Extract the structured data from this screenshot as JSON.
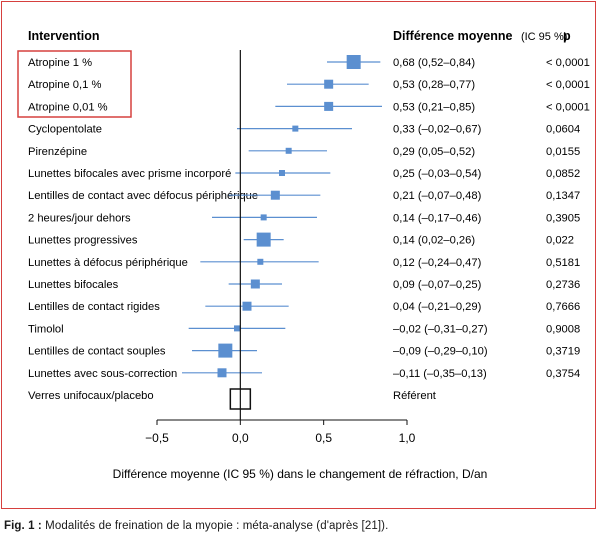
{
  "caption": {
    "figure_label": "Fig. 1 :",
    "text": " Modalités de freination de la myopie : méta-analyse (d'après [21])."
  },
  "headers": {
    "intervention": "Intervention",
    "difference": "Différence moyenne",
    "ci": "(IC 95 %)",
    "p": "p"
  },
  "colors": {
    "frame": "#d6403e",
    "highlight_box": "#d6403e",
    "marker": "#5b8fd0"
  },
  "chart_data": {
    "type": "forest",
    "xlabel": "Différence moyenne (IC 95 %) dans le changement de réfraction, D/an",
    "xlim": [
      -0.5,
      1.0
    ],
    "xticks": [
      "−0,5",
      "0,0",
      "0,5",
      "1,0"
    ],
    "xtick_values": [
      -0.5,
      0.0,
      0.5,
      1.0
    ],
    "highlighted_rows": [
      0,
      1,
      2
    ],
    "rows": [
      {
        "label": "Atropine 1 %",
        "md": 0.68,
        "lo": 0.52,
        "hi": 0.84,
        "ci_text": "0,68 (0,52–0,84)",
        "p": "< 0,0001",
        "weight": 3
      },
      {
        "label": "Atropine 0,1 %",
        "md": 0.53,
        "lo": 0.28,
        "hi": 0.77,
        "ci_text": "0,53 (0,28–0,77)",
        "p": "< 0,0001",
        "weight": 2
      },
      {
        "label": "Atropine 0,01 %",
        "md": 0.53,
        "lo": 0.21,
        "hi": 0.85,
        "ci_text": "0,53 (0,21–0,85)",
        "p": "< 0,0001",
        "weight": 2
      },
      {
        "label": "Cyclopentolate",
        "md": 0.33,
        "lo": -0.02,
        "hi": 0.67,
        "ci_text": "0,33 (–0,02–0,67)",
        "p": "0,0604",
        "weight": 1
      },
      {
        "label": "Pirenzépine",
        "md": 0.29,
        "lo": 0.05,
        "hi": 0.52,
        "ci_text": "0,29 (0,05–0,52)",
        "p": "0,0155",
        "weight": 1
      },
      {
        "label": "Lunettes bifocales avec prisme incorporé",
        "md": 0.25,
        "lo": -0.03,
        "hi": 0.54,
        "ci_text": "0,25 (–0,03–0,54)",
        "p": "0,0852",
        "weight": 1
      },
      {
        "label": "Lentilles de contact avec défocus périphérique",
        "md": 0.21,
        "lo": -0.07,
        "hi": 0.48,
        "ci_text": "0,21 (–0,07–0,48)",
        "p": "0,1347",
        "weight": 2
      },
      {
        "label": "2 heures/jour dehors",
        "md": 0.14,
        "lo": -0.17,
        "hi": 0.46,
        "ci_text": "0,14 (–0,17–0,46)",
        "p": "0,3905",
        "weight": 1
      },
      {
        "label": "Lunettes progressives",
        "md": 0.14,
        "lo": 0.02,
        "hi": 0.26,
        "ci_text": "0,14 (0,02–0,26)",
        "p": "0,022",
        "weight": 3
      },
      {
        "label": "Lunettes à défocus périphérique",
        "md": 0.12,
        "lo": -0.24,
        "hi": 0.47,
        "ci_text": "0,12 (–0,24–0,47)",
        "p": "0,5181",
        "weight": 1
      },
      {
        "label": "Lunettes bifocales",
        "md": 0.09,
        "lo": -0.07,
        "hi": 0.25,
        "ci_text": "0,09 (–0,07–0,25)",
        "p": "0,2736",
        "weight": 2
      },
      {
        "label": "Lentilles de contact rigides",
        "md": 0.04,
        "lo": -0.21,
        "hi": 0.29,
        "ci_text": "0,04 (–0,21–0,29)",
        "p": "0,7666",
        "weight": 2
      },
      {
        "label": "Timolol",
        "md": -0.02,
        "lo": -0.31,
        "hi": 0.27,
        "ci_text": "–0,02 (–0,31–0,27)",
        "p": "0,9008",
        "weight": 1
      },
      {
        "label": "Lentilles de contact souples",
        "md": -0.09,
        "lo": -0.29,
        "hi": 0.1,
        "ci_text": "–0,09 (–0,29–0,10)",
        "p": "0,3719",
        "weight": 3
      },
      {
        "label": "Lunettes avec sous-correction",
        "md": -0.11,
        "lo": -0.35,
        "hi": 0.13,
        "ci_text": "–0,11 (–0,35–0,13)",
        "p": "0,3754",
        "weight": 2
      },
      {
        "label": "Verres unifocaux/placebo",
        "md": 0.0,
        "lo": null,
        "hi": null,
        "ci_text": "Référent",
        "p": "",
        "reference": true
      }
    ]
  }
}
